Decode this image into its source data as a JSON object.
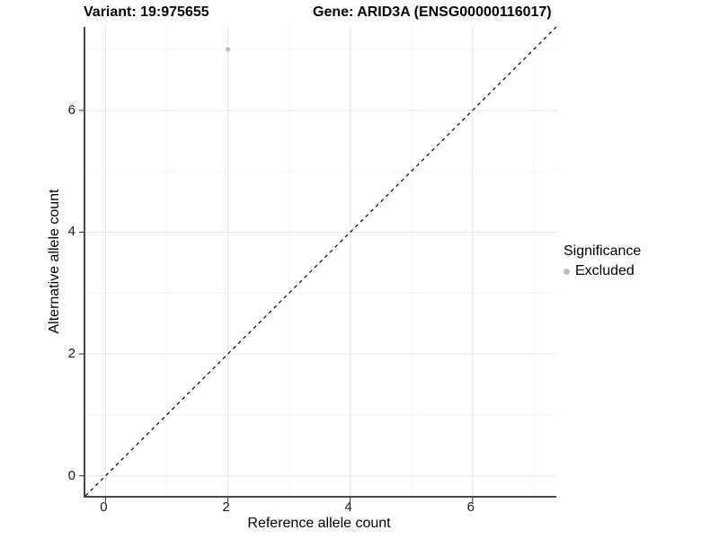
{
  "title": {
    "variant": "Variant: 19:975655",
    "gene": "Gene: ARID3A (ENSG00000116017)"
  },
  "chart_data": {
    "type": "scatter",
    "title": "Variant: 19:975655   Gene: ARID3A (ENSG00000116017)",
    "xlabel": "Reference allele count",
    "ylabel": "Alternative allele count",
    "xlim": [
      -0.33,
      7.37
    ],
    "ylim": [
      -0.33,
      7.37
    ],
    "x_ticks": [
      0,
      2,
      4,
      6
    ],
    "y_ticks": [
      0,
      2,
      4,
      6
    ],
    "x_minor_gridlines": [
      1,
      3,
      5,
      7
    ],
    "y_minor_gridlines": [
      1,
      3,
      5,
      7
    ],
    "grid": "on",
    "legend": {
      "position": "right",
      "title": "Significance",
      "items": [
        {
          "label": "Excluded",
          "color": "#bcbcbc"
        }
      ]
    },
    "series": [
      {
        "name": "Excluded",
        "color": "#bcbcbc",
        "point_radius": 2.6,
        "points": [
          {
            "x": 2,
            "y": 7
          }
        ]
      }
    ],
    "reference_line": {
      "type": "identity y=x",
      "style": "dashed",
      "color": "#000000"
    },
    "colors": {
      "grid_major": "#e4e4e4",
      "grid_minor": "#f4f4f4",
      "axis_line": "#474747",
      "tick_mark": "#333333",
      "text": "#000000"
    }
  }
}
